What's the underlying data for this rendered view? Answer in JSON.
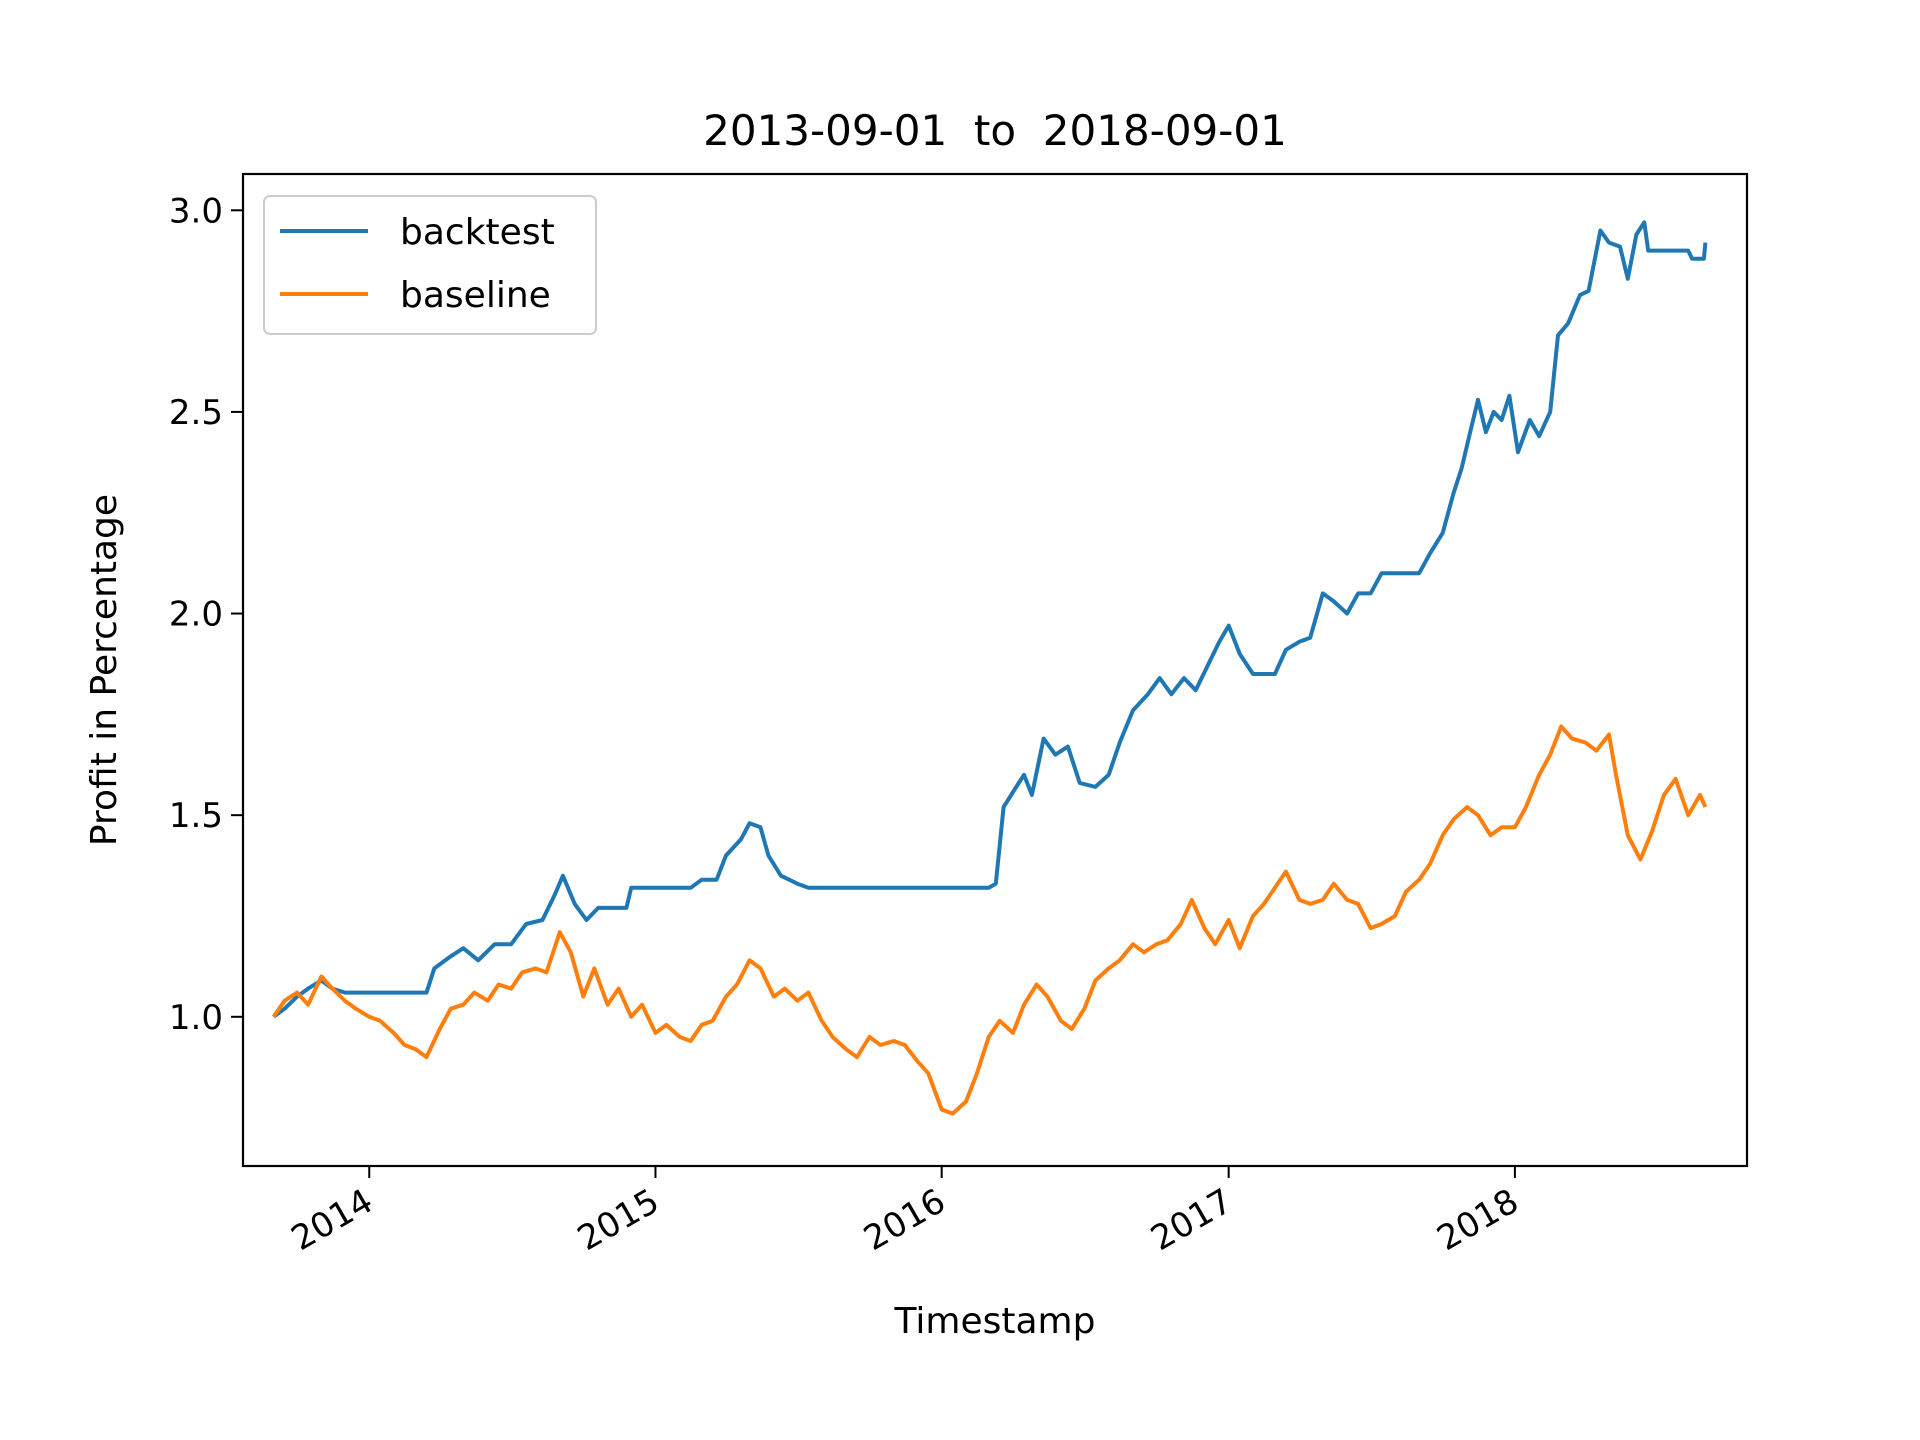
{
  "chart_data": {
    "type": "line",
    "title": "2013-09-01  to  2018-09-01",
    "xlabel": "Timestamp",
    "ylabel": "Profit in Percentage",
    "xlim": [
      "2013-07-24",
      "2018-10-24"
    ],
    "ylim": [
      0.63,
      3.09
    ],
    "xticks": [
      {
        "date": "2014-01-01",
        "label": "2014"
      },
      {
        "date": "2015-01-01",
        "label": "2015"
      },
      {
        "date": "2016-01-01",
        "label": "2016"
      },
      {
        "date": "2017-01-01",
        "label": "2017"
      },
      {
        "date": "2018-01-01",
        "label": "2018"
      }
    ],
    "yticks": [
      {
        "value": 1.0,
        "label": "1.0"
      },
      {
        "value": 1.5,
        "label": "1.5"
      },
      {
        "value": 2.0,
        "label": "2.0"
      },
      {
        "value": 2.5,
        "label": "2.5"
      },
      {
        "value": 3.0,
        "label": "3.0"
      }
    ],
    "grid": false,
    "legend_position": "top-left",
    "series": [
      {
        "name": "backtest",
        "color": "#1f77b4",
        "points": [
          [
            "2013-09-01",
            1.0
          ],
          [
            "2013-09-15",
            1.02
          ],
          [
            "2013-10-01",
            1.05
          ],
          [
            "2013-10-15",
            1.07
          ],
          [
            "2013-11-01",
            1.09
          ],
          [
            "2013-11-15",
            1.07
          ],
          [
            "2013-12-01",
            1.06
          ],
          [
            "2014-01-01",
            1.06
          ],
          [
            "2014-02-01",
            1.06
          ],
          [
            "2014-03-15",
            1.06
          ],
          [
            "2014-03-25",
            1.12
          ],
          [
            "2014-04-15",
            1.15
          ],
          [
            "2014-05-01",
            1.17
          ],
          [
            "2014-05-20",
            1.14
          ],
          [
            "2014-06-10",
            1.18
          ],
          [
            "2014-07-01",
            1.18
          ],
          [
            "2014-07-20",
            1.23
          ],
          [
            "2014-08-10",
            1.24
          ],
          [
            "2014-08-25",
            1.3
          ],
          [
            "2014-09-05",
            1.35
          ],
          [
            "2014-09-20",
            1.28
          ],
          [
            "2014-10-05",
            1.24
          ],
          [
            "2014-10-20",
            1.27
          ],
          [
            "2014-11-10",
            1.27
          ],
          [
            "2014-11-25",
            1.27
          ],
          [
            "2014-12-01",
            1.32
          ],
          [
            "2015-01-15",
            1.32
          ],
          [
            "2015-02-15",
            1.32
          ],
          [
            "2015-03-01",
            1.34
          ],
          [
            "2015-03-20",
            1.34
          ],
          [
            "2015-04-01",
            1.4
          ],
          [
            "2015-04-20",
            1.44
          ],
          [
            "2015-05-01",
            1.48
          ],
          [
            "2015-05-15",
            1.47
          ],
          [
            "2015-05-25",
            1.4
          ],
          [
            "2015-06-10",
            1.35
          ],
          [
            "2015-07-01",
            1.33
          ],
          [
            "2015-07-15",
            1.32
          ],
          [
            "2016-01-01",
            1.32
          ],
          [
            "2016-03-01",
            1.32
          ],
          [
            "2016-03-10",
            1.33
          ],
          [
            "2016-03-20",
            1.52
          ],
          [
            "2016-04-05",
            1.57
          ],
          [
            "2016-04-15",
            1.6
          ],
          [
            "2016-04-25",
            1.55
          ],
          [
            "2016-05-10",
            1.69
          ],
          [
            "2016-05-25",
            1.65
          ],
          [
            "2016-06-10",
            1.67
          ],
          [
            "2016-06-25",
            1.58
          ],
          [
            "2016-07-15",
            1.57
          ],
          [
            "2016-08-01",
            1.6
          ],
          [
            "2016-08-15",
            1.68
          ],
          [
            "2016-09-01",
            1.76
          ],
          [
            "2016-09-20",
            1.8
          ],
          [
            "2016-10-05",
            1.84
          ],
          [
            "2016-10-20",
            1.8
          ],
          [
            "2016-11-05",
            1.84
          ],
          [
            "2016-11-20",
            1.81
          ],
          [
            "2016-12-05",
            1.87
          ],
          [
            "2016-12-20",
            1.93
          ],
          [
            "2017-01-01",
            1.97
          ],
          [
            "2017-01-15",
            1.9
          ],
          [
            "2017-02-01",
            1.85
          ],
          [
            "2017-02-15",
            1.85
          ],
          [
            "2017-03-01",
            1.85
          ],
          [
            "2017-03-15",
            1.91
          ],
          [
            "2017-04-01",
            1.93
          ],
          [
            "2017-04-15",
            1.94
          ],
          [
            "2017-05-01",
            2.05
          ],
          [
            "2017-05-15",
            2.03
          ],
          [
            "2017-06-01",
            2.0
          ],
          [
            "2017-06-15",
            2.05
          ],
          [
            "2017-07-01",
            2.05
          ],
          [
            "2017-07-15",
            2.1
          ],
          [
            "2017-08-01",
            2.1
          ],
          [
            "2017-09-01",
            2.1
          ],
          [
            "2017-09-15",
            2.15
          ],
          [
            "2017-10-01",
            2.2
          ],
          [
            "2017-10-15",
            2.3
          ],
          [
            "2017-10-25",
            2.36
          ],
          [
            "2017-11-05",
            2.45
          ],
          [
            "2017-11-15",
            2.53
          ],
          [
            "2017-11-25",
            2.45
          ],
          [
            "2017-12-05",
            2.5
          ],
          [
            "2017-12-15",
            2.48
          ],
          [
            "2017-12-25",
            2.54
          ],
          [
            "2018-01-05",
            2.4
          ],
          [
            "2018-01-20",
            2.48
          ],
          [
            "2018-02-01",
            2.44
          ],
          [
            "2018-02-15",
            2.5
          ],
          [
            "2018-02-25",
            2.69
          ],
          [
            "2018-03-10",
            2.72
          ],
          [
            "2018-03-25",
            2.79
          ],
          [
            "2018-04-05",
            2.8
          ],
          [
            "2018-04-20",
            2.95
          ],
          [
            "2018-05-01",
            2.92
          ],
          [
            "2018-05-15",
            2.91
          ],
          [
            "2018-05-25",
            2.83
          ],
          [
            "2018-06-05",
            2.94
          ],
          [
            "2018-06-15",
            2.97
          ],
          [
            "2018-06-20",
            2.9
          ],
          [
            "2018-07-15",
            2.9
          ],
          [
            "2018-08-10",
            2.9
          ],
          [
            "2018-08-15",
            2.88
          ],
          [
            "2018-08-30",
            2.88
          ],
          [
            "2018-09-01",
            2.92
          ]
        ]
      },
      {
        "name": "baseline",
        "color": "#ff7f0e",
        "points": [
          [
            "2013-09-01",
            1.0
          ],
          [
            "2013-09-15",
            1.04
          ],
          [
            "2013-10-01",
            1.06
          ],
          [
            "2013-10-15",
            1.03
          ],
          [
            "2013-11-01",
            1.1
          ],
          [
            "2013-11-15",
            1.07
          ],
          [
            "2013-12-01",
            1.04
          ],
          [
            "2013-12-15",
            1.02
          ],
          [
            "2014-01-01",
            1.0
          ],
          [
            "2014-01-15",
            0.99
          ],
          [
            "2014-02-01",
            0.96
          ],
          [
            "2014-02-15",
            0.93
          ],
          [
            "2014-03-01",
            0.92
          ],
          [
            "2014-03-15",
            0.9
          ],
          [
            "2014-04-01",
            0.97
          ],
          [
            "2014-04-15",
            1.02
          ],
          [
            "2014-05-01",
            1.03
          ],
          [
            "2014-05-15",
            1.06
          ],
          [
            "2014-06-01",
            1.04
          ],
          [
            "2014-06-15",
            1.08
          ],
          [
            "2014-07-01",
            1.07
          ],
          [
            "2014-07-15",
            1.11
          ],
          [
            "2014-08-01",
            1.12
          ],
          [
            "2014-08-15",
            1.11
          ],
          [
            "2014-09-01",
            1.21
          ],
          [
            "2014-09-15",
            1.16
          ],
          [
            "2014-10-01",
            1.05
          ],
          [
            "2014-10-15",
            1.12
          ],
          [
            "2014-11-01",
            1.03
          ],
          [
            "2014-11-15",
            1.07
          ],
          [
            "2014-12-01",
            1.0
          ],
          [
            "2014-12-15",
            1.03
          ],
          [
            "2015-01-01",
            0.96
          ],
          [
            "2015-01-15",
            0.98
          ],
          [
            "2015-02-01",
            0.95
          ],
          [
            "2015-02-15",
            0.94
          ],
          [
            "2015-03-01",
            0.98
          ],
          [
            "2015-03-15",
            0.99
          ],
          [
            "2015-04-01",
            1.05
          ],
          [
            "2015-04-15",
            1.08
          ],
          [
            "2015-05-01",
            1.14
          ],
          [
            "2015-05-15",
            1.12
          ],
          [
            "2015-06-01",
            1.05
          ],
          [
            "2015-06-15",
            1.07
          ],
          [
            "2015-07-01",
            1.04
          ],
          [
            "2015-07-15",
            1.06
          ],
          [
            "2015-08-01",
            0.99
          ],
          [
            "2015-08-15",
            0.95
          ],
          [
            "2015-09-01",
            0.92
          ],
          [
            "2015-09-15",
            0.9
          ],
          [
            "2015-10-01",
            0.95
          ],
          [
            "2015-10-15",
            0.93
          ],
          [
            "2015-11-01",
            0.94
          ],
          [
            "2015-11-15",
            0.93
          ],
          [
            "2015-12-01",
            0.89
          ],
          [
            "2015-12-15",
            0.86
          ],
          [
            "2016-01-01",
            0.77
          ],
          [
            "2016-01-15",
            0.76
          ],
          [
            "2016-02-01",
            0.79
          ],
          [
            "2016-02-15",
            0.86
          ],
          [
            "2016-03-01",
            0.95
          ],
          [
            "2016-03-15",
            0.99
          ],
          [
            "2016-04-01",
            0.96
          ],
          [
            "2016-04-15",
            1.03
          ],
          [
            "2016-05-01",
            1.08
          ],
          [
            "2016-05-15",
            1.05
          ],
          [
            "2016-06-01",
            0.99
          ],
          [
            "2016-06-15",
            0.97
          ],
          [
            "2016-07-01",
            1.02
          ],
          [
            "2016-07-15",
            1.09
          ],
          [
            "2016-08-01",
            1.12
          ],
          [
            "2016-08-15",
            1.14
          ],
          [
            "2016-09-01",
            1.18
          ],
          [
            "2016-09-15",
            1.16
          ],
          [
            "2016-10-01",
            1.18
          ],
          [
            "2016-10-15",
            1.19
          ],
          [
            "2016-11-01",
            1.23
          ],
          [
            "2016-11-15",
            1.29
          ],
          [
            "2016-12-01",
            1.22
          ],
          [
            "2016-12-15",
            1.18
          ],
          [
            "2017-01-01",
            1.24
          ],
          [
            "2017-01-15",
            1.17
          ],
          [
            "2017-02-01",
            1.25
          ],
          [
            "2017-02-15",
            1.28
          ],
          [
            "2017-03-01",
            1.32
          ],
          [
            "2017-03-15",
            1.36
          ],
          [
            "2017-04-01",
            1.29
          ],
          [
            "2017-04-15",
            1.28
          ],
          [
            "2017-05-01",
            1.29
          ],
          [
            "2017-05-15",
            1.33
          ],
          [
            "2017-06-01",
            1.29
          ],
          [
            "2017-06-15",
            1.28
          ],
          [
            "2017-07-01",
            1.22
          ],
          [
            "2017-07-15",
            1.23
          ],
          [
            "2017-08-01",
            1.25
          ],
          [
            "2017-08-15",
            1.31
          ],
          [
            "2017-09-01",
            1.34
          ],
          [
            "2017-09-15",
            1.38
          ],
          [
            "2017-10-01",
            1.45
          ],
          [
            "2017-10-15",
            1.49
          ],
          [
            "2017-11-01",
            1.52
          ],
          [
            "2017-11-15",
            1.5
          ],
          [
            "2017-12-01",
            1.45
          ],
          [
            "2017-12-15",
            1.47
          ],
          [
            "2018-01-01",
            1.47
          ],
          [
            "2018-01-15",
            1.52
          ],
          [
            "2018-02-01",
            1.6
          ],
          [
            "2018-02-15",
            1.65
          ],
          [
            "2018-03-01",
            1.72
          ],
          [
            "2018-03-15",
            1.69
          ],
          [
            "2018-04-01",
            1.68
          ],
          [
            "2018-04-15",
            1.66
          ],
          [
            "2018-05-01",
            1.7
          ],
          [
            "2018-05-10",
            1.6
          ],
          [
            "2018-05-25",
            1.45
          ],
          [
            "2018-06-10",
            1.39
          ],
          [
            "2018-06-25",
            1.46
          ],
          [
            "2018-07-10",
            1.55
          ],
          [
            "2018-07-25",
            1.59
          ],
          [
            "2018-08-10",
            1.5
          ],
          [
            "2018-08-25",
            1.55
          ],
          [
            "2018-09-01",
            1.52
          ]
        ]
      }
    ]
  }
}
